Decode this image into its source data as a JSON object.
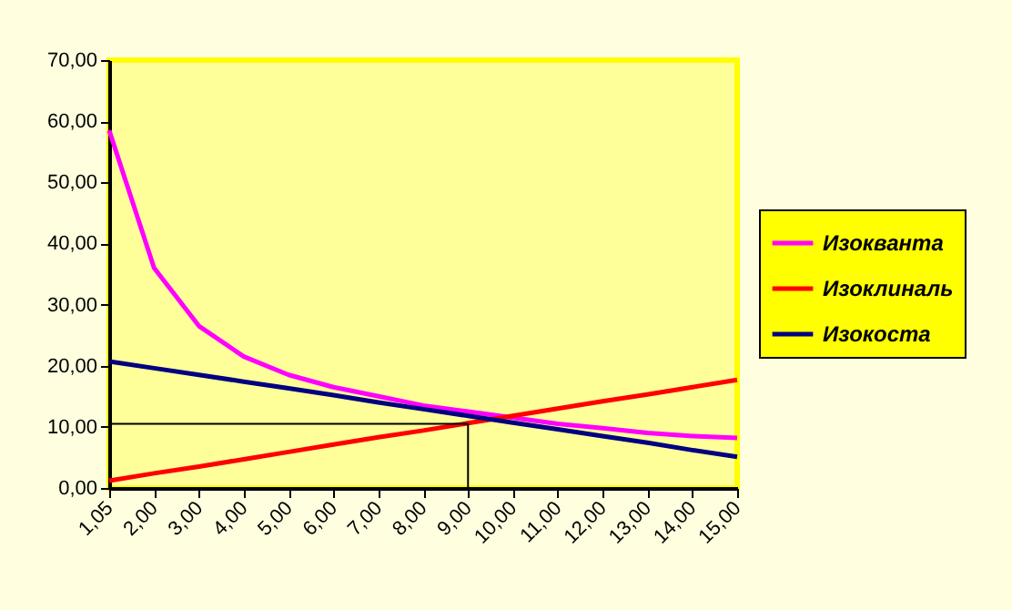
{
  "chart_data": {
    "type": "line",
    "categories": [
      "1,05",
      "2,00",
      "3,00",
      "4,00",
      "5,00",
      "6,00",
      "7,00",
      "8,00",
      "9,00",
      "10,00",
      "11,00",
      "12,00",
      "13,00",
      "14,00",
      "15,00"
    ],
    "series": [
      {
        "name": "Изокванта",
        "color": "#ff00ff",
        "values": [
          58.5,
          36,
          26.5,
          21.5,
          18.5,
          16.5,
          15,
          13.5,
          12.5,
          11.5,
          10.5,
          9.8,
          9,
          8.5,
          8.2
        ]
      },
      {
        "name": "Изоклиналь",
        "color": "#ff0000",
        "values": [
          1.2,
          2.4,
          3.5,
          4.7,
          5.9,
          7.1,
          8.3,
          9.4,
          10.6,
          11.8,
          13.0,
          14.2,
          15.3,
          16.5,
          17.7
        ]
      },
      {
        "name": "Изокоста",
        "color": "#000080",
        "values": [
          20.7,
          19.6,
          18.5,
          17.4,
          16.3,
          15.2,
          14.0,
          12.9,
          11.8,
          10.7,
          9.6,
          8.5,
          7.4,
          6.2,
          5.1
        ]
      }
    ],
    "ylim": [
      0,
      70
    ],
    "yticks": [
      {
        "value": 0,
        "label": "0,00"
      },
      {
        "value": 10,
        "label": "10,00"
      },
      {
        "value": 20,
        "label": "20,00"
      },
      {
        "value": 30,
        "label": "30,00"
      },
      {
        "value": 40,
        "label": "40,00"
      },
      {
        "value": 50,
        "label": "50,00"
      },
      {
        "value": 60,
        "label": "60,00"
      },
      {
        "value": 70,
        "label": "70,00"
      }
    ],
    "ref_lines": [
      {
        "axis": "y",
        "value": 10.5,
        "color": "#000000"
      },
      {
        "axis": "x",
        "value": "9,00",
        "color": "#000000"
      }
    ],
    "legend": "right",
    "marker": "none",
    "line_style": "solid"
  }
}
